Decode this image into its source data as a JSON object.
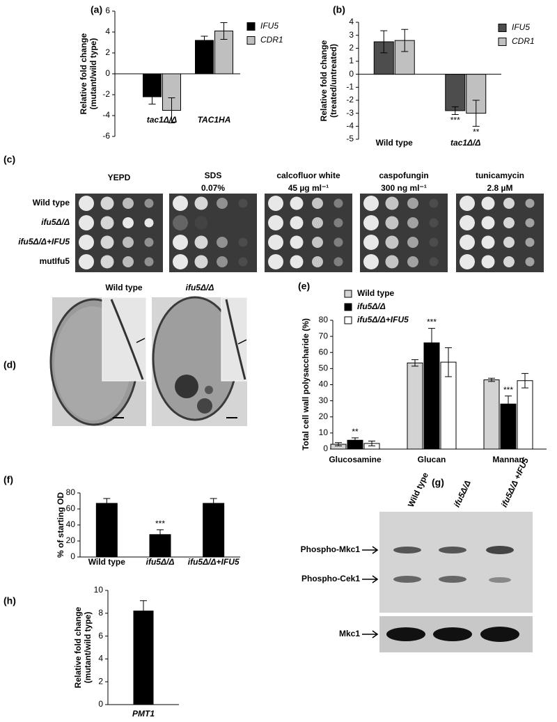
{
  "chart_data": [
    {
      "type": "bar",
      "panel": "(a)",
      "ylabel": [
        "Relative fold change",
        "(mutant/wild type)"
      ],
      "categories": [
        "tac1Δ/Δ",
        "TAC1HA"
      ],
      "series": [
        {
          "name": "IFU5",
          "color": "#000000",
          "values": [
            -2.2,
            3.2
          ],
          "errors": [
            0.7,
            0.4
          ]
        },
        {
          "name": "CDR1",
          "color": "#bfbfbf",
          "values": [
            -3.5,
            4.1
          ],
          "errors": [
            1.2,
            0.8
          ]
        }
      ],
      "ylim": [
        -6,
        6
      ],
      "yticks": [
        -6,
        -4,
        -2,
        0,
        2,
        4,
        6
      ]
    },
    {
      "type": "bar",
      "panel": "(b)",
      "ylabel": [
        "Relative fold change",
        "(treated/untreated)"
      ],
      "categories": [
        "Wild type",
        "tac1Δ/Δ"
      ],
      "series": [
        {
          "name": "IFU5",
          "color": "#4d4d4d",
          "values": [
            2.5,
            -2.8
          ],
          "errors": [
            0.85,
            0.3
          ]
        },
        {
          "name": "CDR1",
          "color": "#c0c0c0",
          "values": [
            2.6,
            -3.0
          ],
          "errors": [
            0.85,
            1.0
          ]
        }
      ],
      "annotations": [
        "***",
        "**"
      ],
      "ylim": [
        -5,
        4
      ],
      "yticks": [
        -5,
        -4,
        -3,
        -2,
        -1,
        0,
        1,
        2,
        3,
        4
      ]
    },
    {
      "type": "bar",
      "panel": "(e)",
      "ylabel": [
        "Total cell wall polysaccharide (%)"
      ],
      "categories": [
        "Glucosamine",
        "Glucan",
        "Mannan"
      ],
      "series": [
        {
          "name": "Wild type",
          "color": "#d3d3d3",
          "values": [
            3,
            53.5,
            43
          ],
          "errors": [
            1,
            2,
            1
          ]
        },
        {
          "name": "ifu5Δ/Δ",
          "color": "#000000",
          "values": [
            5.5,
            66,
            28
          ],
          "errors": [
            1.5,
            9,
            5
          ]
        },
        {
          "name": "ifu5Δ/Δ+IFU5",
          "color": "#ffffff",
          "values": [
            3.5,
            54,
            42.5
          ],
          "errors": [
            1.5,
            9,
            4.5
          ]
        }
      ],
      "annotations": [
        "**",
        "***",
        "***"
      ],
      "ylim": [
        0,
        80
      ],
      "yticks": [
        0,
        10,
        20,
        30,
        40,
        50,
        60,
        70,
        80
      ]
    },
    {
      "type": "bar",
      "panel": "(f)",
      "ylabel": [
        "% of starting OD"
      ],
      "categories": [
        "Wild type",
        "ifu5Δ/Δ",
        "ifu5Δ/Δ+IFU5"
      ],
      "values": [
        67,
        28,
        67
      ],
      "errors": [
        6,
        6,
        6
      ],
      "color": "#000000",
      "annotations": [
        "***"
      ],
      "ylim": [
        0,
        80
      ],
      "yticks": [
        0,
        20,
        40,
        60,
        80
      ]
    },
    {
      "type": "bar",
      "panel": "(h)",
      "ylabel": [
        "Relative fold change",
        "(mutant/wild type)"
      ],
      "categories": [
        "PMT1"
      ],
      "values": [
        8.2
      ],
      "errors": [
        0.9
      ],
      "color": "#000000",
      "ylim": [
        0,
        10
      ],
      "yticks": [
        0,
        2,
        4,
        6,
        8,
        10
      ]
    }
  ],
  "spot_assay": {
    "panel": "(c)",
    "conditions": [
      [
        "YEPD"
      ],
      [
        "SDS",
        "0.07%"
      ],
      [
        "calcofluor white",
        "45 µg ml⁻¹"
      ],
      [
        "caspofungin",
        "300 ng ml⁻¹"
      ],
      [
        "tunicamycin",
        "2.8 µM"
      ]
    ],
    "strains": [
      "Wild type",
      "ifu5Δ/Δ",
      "ifu5Δ/Δ+IFU5",
      "mutIfu5"
    ]
  },
  "micrographs": {
    "panel": "(d)",
    "labels": [
      "Wild type",
      "ifu5Δ/Δ"
    ]
  },
  "western_blot": {
    "panel": "(g)",
    "lanes": [
      "Wild type",
      "ifu5Δ/Δ",
      "ifu5Δ/Δ +IFU5"
    ],
    "rows": [
      "Phospho-Mkc1",
      "Phospho-Cek1",
      "Mkc1"
    ]
  }
}
